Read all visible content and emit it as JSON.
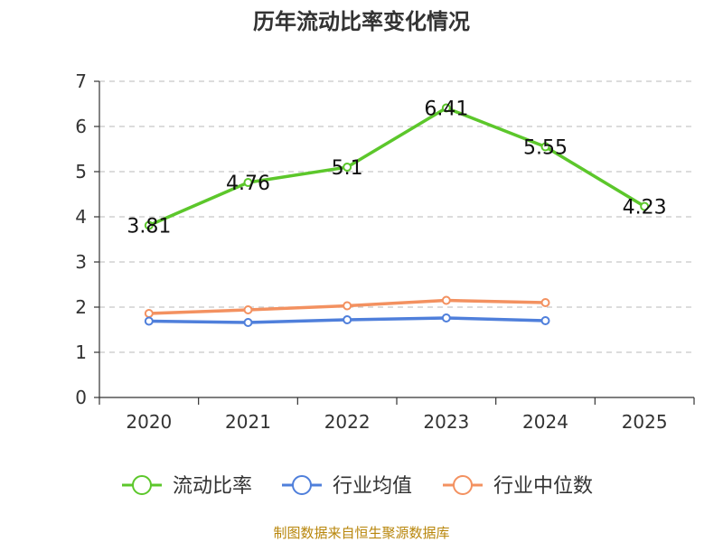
{
  "chart_data": {
    "type": "line",
    "title": "历年流动比率变化情况",
    "categories": [
      "2020",
      "2021",
      "2022",
      "2023",
      "2024",
      "2025"
    ],
    "ylim": [
      0,
      7
    ],
    "yticks": [
      0,
      1,
      2,
      3,
      4,
      5,
      6,
      7
    ],
    "grid": true,
    "legend_position": "bottom",
    "series": [
      {
        "name": "流动比率",
        "color": "#5cc72b",
        "values": [
          3.81,
          4.76,
          5.1,
          6.41,
          5.55,
          4.23
        ],
        "labels": [
          "3.81",
          "4.76",
          "5.1",
          "6.41",
          "5.55",
          "4.23"
        ],
        "show_labels": true
      },
      {
        "name": "行业均值",
        "color": "#4f7fdb",
        "values": [
          1.69,
          1.66,
          1.72,
          1.76,
          1.7,
          null
        ],
        "show_labels": false
      },
      {
        "name": "行业中位数",
        "color": "#f39160",
        "values": [
          1.86,
          1.94,
          2.03,
          2.15,
          2.1,
          null
        ],
        "show_labels": false
      }
    ]
  },
  "footer": "制图数据来自恒生聚源数据库"
}
